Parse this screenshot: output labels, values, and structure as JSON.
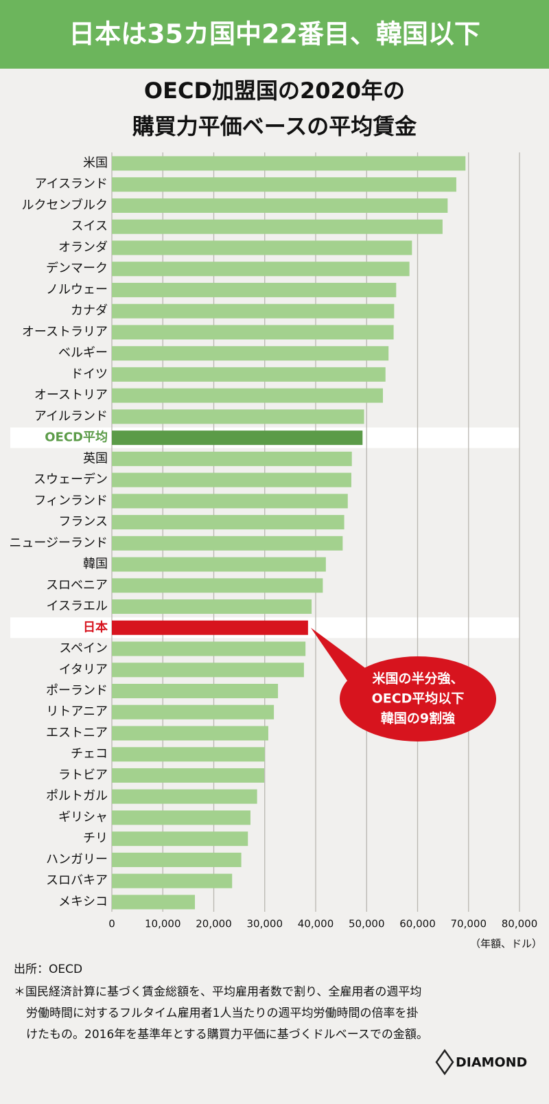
{
  "chart_data": {
    "type": "bar",
    "orientation": "horizontal",
    "header": "日本は35カ国中22番目、韓国以下",
    "title": [
      "OECD加盟国の2020年の",
      "購買力平価ベースの平均賃金"
    ],
    "categories": [
      "米国",
      "アイスランド",
      "ルクセンブルク",
      "スイス",
      "オランダ",
      "デンマーク",
      "ノルウェー",
      "カナダ",
      "オーストラリア",
      "ベルギー",
      "ドイツ",
      "オーストリア",
      "アイルランド",
      "OECD平均",
      "英国",
      "スウェーデン",
      "フィンランド",
      "フランス",
      "ニュージーランド",
      "韓国",
      "スロベニア",
      "イスラエル",
      "日本",
      "スペイン",
      "イタリア",
      "ポーランド",
      "リトアニア",
      "エストニア",
      "チェコ",
      "ラトビア",
      "ポルトガル",
      "ギリシャ",
      "チリ",
      "ハンガリー",
      "スロバキア",
      "メキシコ"
    ],
    "values": [
      69400,
      67600,
      65900,
      64900,
      58900,
      58400,
      55800,
      55400,
      55300,
      54300,
      53700,
      53200,
      49500,
      49200,
      47100,
      47000,
      46300,
      45600,
      45300,
      42000,
      41400,
      39200,
      38500,
      38000,
      37700,
      32600,
      31800,
      30700,
      30000,
      29900,
      28500,
      27200,
      26700,
      25400,
      23600,
      16300
    ],
    "color": "#a3d18e",
    "colors": [
      "#a3d18e",
      "#a3d18e",
      "#a3d18e",
      "#a3d18e",
      "#a3d18e",
      "#a3d18e",
      "#a3d18e",
      "#a3d18e",
      "#a3d18e",
      "#a3d18e",
      "#a3d18e",
      "#a3d18e",
      "#a3d18e",
      "#5b9b48",
      "#a3d18e",
      "#a3d18e",
      "#a3d18e",
      "#a3d18e",
      "#a3d18e",
      "#a3d18e",
      "#a3d18e",
      "#a3d18e",
      "#d7141e",
      "#a3d18e",
      "#a3d18e",
      "#a3d18e",
      "#a3d18e",
      "#a3d18e",
      "#a3d18e",
      "#a3d18e",
      "#a3d18e",
      "#a3d18e",
      "#a3d18e",
      "#a3d18e",
      "#a3d18e",
      "#a3d18e"
    ],
    "xlim": [
      0,
      80000
    ],
    "xticks": [
      0,
      {
        "value": 10000,
        "label": "10,000"
      },
      {
        "value": 20000,
        "label": "20,000"
      },
      {
        "value": 30000,
        "label": "30,000"
      },
      {
        "value": 40000,
        "label": "40,000"
      },
      {
        "value": 50000,
        "label": "50,000"
      },
      {
        "value": 60000,
        "label": "60,000"
      },
      {
        "value": 70000,
        "label": "70,000"
      },
      {
        "value": 80000,
        "label": "80,000"
      }
    ],
    "grid": true,
    "unit": "（年額、ドル）",
    "callout": [
      "米国の半分強、",
      "OECD平均以下",
      "韓国の9割強"
    ],
    "source": "出所：OECD",
    "note": [
      "＊国民経済計算に基づく賃金総額を、平均雇用者数で割り、全雇用者の週平均",
      "労働時間に対するフルタイム雇用者1人当たりの週平均労働時間の倍率を掛",
      "けたもの。2016年を基準年とする購買力平価に基づくドルベースでの金額。"
    ],
    "logo": "DIAMOND"
  }
}
